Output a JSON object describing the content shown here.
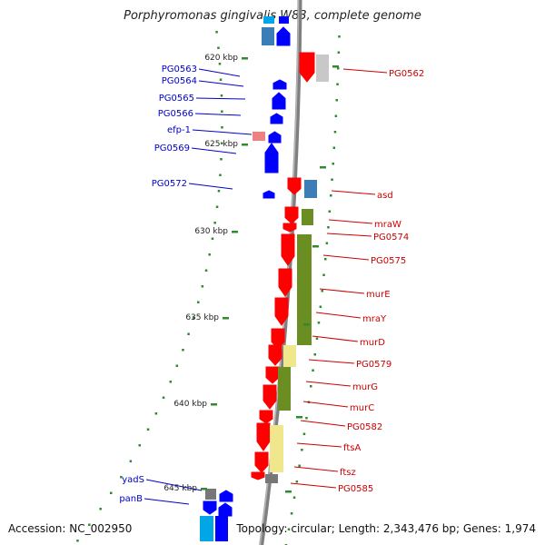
{
  "title": "Porphyromonas gingivalis W83, complete genome",
  "footer": {
    "accession": "Accession: NC_002950",
    "topology": "Topology: circular; Length: 2,343,476 bp; Genes: 1,974"
  },
  "colors": {
    "backbone": "#7f7f7f",
    "tick": "#2e8b2e",
    "left_label": "#0000cc",
    "right_label": "#cc0000",
    "gene_blue": "#0000ff",
    "gene_red": "#ff0000",
    "gene_cyan": "#00a6e6",
    "gene_steel": "#3b7db7",
    "gene_pink": "#f07f7f",
    "gene_olive": "#6b8e23",
    "gene_khaki": "#f0e68c",
    "gene_gray": "#777777",
    "gene_lightgray": "#c8c8c8"
  },
  "coordinate_labels": [
    {
      "kbp": 620,
      "text": "620 kbp"
    },
    {
      "kbp": 625,
      "text": "625 kbp"
    },
    {
      "kbp": 630,
      "text": "630 kbp"
    },
    {
      "kbp": 635,
      "text": "635 kbp"
    },
    {
      "kbp": 640,
      "text": "640 kbp"
    },
    {
      "kbp": 645,
      "text": "645 kbp"
    }
  ],
  "left_genes": [
    "PG0563",
    "PG0564",
    "PG0565",
    "PG0566",
    "efp-1",
    "PG0569",
    "PG0572",
    "yadS",
    "panB"
  ],
  "right_genes": [
    "PG0562",
    "asd",
    "mraW",
    "PG0574",
    "PG0575",
    "murE",
    "mraY",
    "murD",
    "PG0579",
    "murG",
    "murC",
    "PG0582",
    "ftsA",
    "ftsz",
    "PG0585"
  ]
}
